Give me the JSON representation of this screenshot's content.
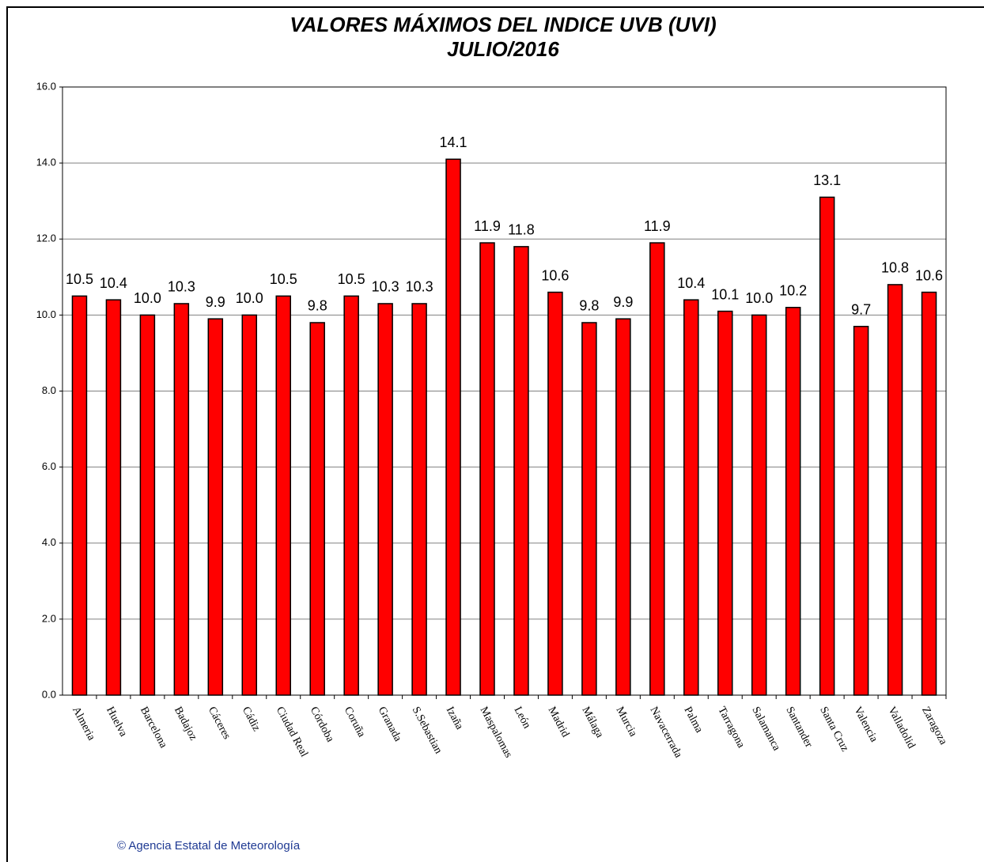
{
  "chart_data": {
    "type": "bar",
    "title": "VALORES MÁXIMOS DEL INDICE UVB (UVI)",
    "subtitle": "JULIO/2016",
    "source": "© Agencia Estatal de Meteorología",
    "categories": [
      "Almeria",
      "Huelva",
      "Barcelona",
      "Badajoz",
      "Cáceres",
      "Cádiz",
      "Ciudad Real",
      "Córdoba",
      "Coruña",
      "Granada",
      "S.Sebastian",
      "Izaña",
      "Maspalomas",
      "León",
      "Madrid",
      "Málaga",
      "Murcia",
      "Navacerrada",
      "Palma",
      "Tarragona",
      "Salamanca",
      "Santander",
      "Santa Cruz",
      "Valencia",
      "Valladolid",
      "Zaragoza"
    ],
    "values": [
      10.5,
      10.4,
      10.0,
      10.3,
      9.9,
      10.0,
      10.5,
      9.8,
      10.5,
      10.3,
      10.3,
      14.1,
      11.9,
      11.8,
      10.6,
      9.8,
      9.9,
      11.9,
      10.4,
      10.1,
      10.0,
      10.2,
      13.1,
      9.7,
      10.8,
      10.6
    ],
    "value_labels": [
      "10.5",
      "10.4",
      "10.0",
      "10.3",
      "9.9",
      "10.0",
      "10.5",
      "9.8",
      "10.5",
      "10.3",
      "10.3",
      "14.1",
      "11.9",
      "11.8",
      "10.6",
      "9.8",
      "9.9",
      "11.9",
      "10.4",
      "10.1",
      "10.0",
      "10.2",
      "13.1",
      "9.7",
      "10.8",
      "10.6"
    ],
    "color": "#ff0000",
    "ylim": [
      0,
      16
    ],
    "yticks": [
      {
        "value": 0,
        "label": "0.0"
      },
      {
        "value": 2,
        "label": "2.0"
      },
      {
        "value": 4,
        "label": "4.0"
      },
      {
        "value": 6,
        "label": "6.0"
      },
      {
        "value": 8,
        "label": "8.0"
      },
      {
        "value": 10,
        "label": "10.0"
      },
      {
        "value": 12,
        "label": "12.0"
      },
      {
        "value": 14,
        "label": "14.0"
      },
      {
        "value": 16,
        "label": "16.0"
      }
    ],
    "grid": true
  }
}
